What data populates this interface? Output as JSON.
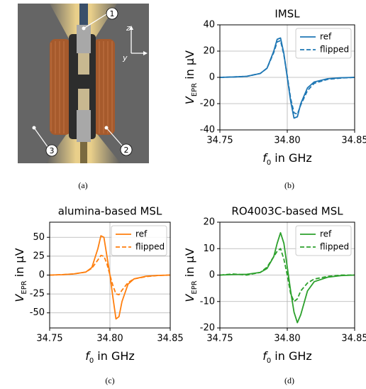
{
  "photo": {
    "labels": [
      "1",
      "2",
      "3"
    ],
    "axes": [
      "z",
      "y"
    ]
  },
  "captions": [
    "(a)",
    "(b)",
    "(c)",
    "(d)"
  ],
  "chart_data": [
    {
      "type": "line",
      "title": "IMSL",
      "xlabel": [
        "f",
        "0",
        " in GHz"
      ],
      "ylabel": [
        "V",
        "EPR",
        " in µV"
      ],
      "x": [
        34.75,
        34.76,
        34.77,
        34.78,
        34.785,
        34.79,
        34.7925,
        34.795,
        34.7975,
        34.8,
        34.8025,
        34.805,
        34.8075,
        34.81,
        34.815,
        34.82,
        34.83,
        34.84,
        34.85
      ],
      "series": [
        {
          "name": "ref",
          "color": "#1f77b4",
          "dashed": false,
          "values": [
            0,
            0.3,
            0.8,
            3,
            7,
            20,
            29,
            30,
            18,
            0,
            -18,
            -31,
            -30,
            -20,
            -8,
            -3.5,
            -1,
            -0.3,
            0
          ]
        },
        {
          "name": "flipped",
          "color": "#1f77b4",
          "dashed": true,
          "values": [
            0,
            0.3,
            0.8,
            3,
            7,
            19,
            27,
            28,
            17,
            1,
            -16,
            -27,
            -28,
            -21,
            -10,
            -4.5,
            -1.5,
            -0.5,
            0
          ]
        }
      ],
      "xlim": [
        34.75,
        34.85
      ],
      "xticks": [
        34.75,
        {
          "value": 34.8,
          "label": "34.80"
        },
        34.85
      ],
      "ylim": [
        -40,
        40
      ],
      "yticks": [
        -40,
        -20,
        0,
        20,
        40
      ],
      "grid": true,
      "legend": "upper right"
    },
    {
      "type": "line",
      "title": "alumina-based MSL",
      "xlabel": [
        "f",
        "0",
        " in GHz"
      ],
      "ylabel": [
        "V",
        "EPR",
        " in µV"
      ],
      "x": [
        34.75,
        34.76,
        34.77,
        34.78,
        34.785,
        34.79,
        34.7925,
        34.795,
        34.7975,
        34.8,
        34.8025,
        34.805,
        34.8075,
        34.81,
        34.815,
        34.82,
        34.83,
        34.84,
        34.85
      ],
      "series": [
        {
          "name": "ref",
          "color": "#ff7f0e",
          "dashed": false,
          "values": [
            0,
            0.5,
            1.5,
            4,
            10,
            35,
            52,
            50,
            25,
            0,
            -30,
            -58,
            -55,
            -35,
            -12,
            -5,
            -1.5,
            -0.5,
            0
          ]
        },
        {
          "name": "flipped",
          "color": "#ff7f0e",
          "dashed": true,
          "values": [
            0,
            0.5,
            1.5,
            4,
            9,
            20,
            26,
            25,
            15,
            0,
            -14,
            -25,
            -26,
            -20,
            -10,
            -5,
            -2,
            -0.5,
            0
          ]
        }
      ],
      "xlim": [
        34.75,
        34.85
      ],
      "xticks": [
        34.75,
        {
          "value": 34.8,
          "label": "34.80"
        },
        34.85
      ],
      "ylim": [
        -70,
        70
      ],
      "yticks": [
        -50,
        -25,
        0,
        25,
        50
      ],
      "grid": true,
      "legend": "upper right"
    },
    {
      "type": "line",
      "title": "RO4003C-based MSL",
      "xlabel": [
        "f",
        "0",
        " in GHz"
      ],
      "ylabel": [
        "V",
        "EPR",
        " in µV"
      ],
      "x": [
        34.75,
        34.76,
        34.77,
        34.78,
        34.785,
        34.79,
        34.7925,
        34.795,
        34.7975,
        34.8,
        34.8025,
        34.805,
        34.8075,
        34.81,
        34.815,
        34.82,
        34.83,
        34.84,
        34.85
      ],
      "series": [
        {
          "name": "ref",
          "color": "#2ca02c",
          "dashed": false,
          "values": [
            0,
            0.2,
            0.3,
            1,
            2.5,
            7,
            12,
            16,
            12,
            3,
            -6,
            -14,
            -18,
            -15,
            -6,
            -2.5,
            -0.8,
            -0.2,
            0
          ]
        },
        {
          "name": "flipped",
          "color": "#2ca02c",
          "dashed": true,
          "values": [
            0,
            0.4,
            0,
            1,
            3,
            7,
            9,
            10,
            6,
            0,
            -7,
            -10,
            -9,
            -6,
            -3,
            -1.5,
            -0.5,
            0,
            0
          ]
        }
      ],
      "xlim": [
        34.75,
        34.85
      ],
      "xticks": [
        34.75,
        {
          "value": 34.8,
          "label": "34.80"
        },
        34.85
      ],
      "ylim": [
        -20,
        20
      ],
      "yticks": [
        -20,
        -10,
        0,
        10,
        20
      ],
      "grid": true,
      "legend": "upper right"
    }
  ]
}
